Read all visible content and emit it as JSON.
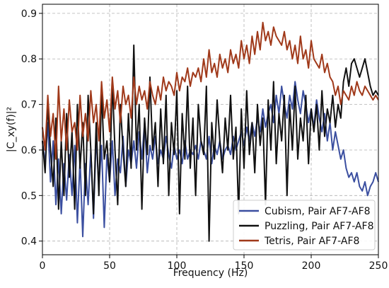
{
  "chart_data": {
    "type": "line",
    "xlabel": "Frequency (Hz)",
    "ylabel": "|C_xy(f)|²",
    "xlim": [
      0,
      250
    ],
    "ylim": [
      0.37,
      0.92
    ],
    "x_ticks": [
      0,
      50,
      100,
      150,
      200,
      250
    ],
    "y_ticks": [
      0.4,
      0.5,
      0.6,
      0.7,
      0.8,
      0.9
    ],
    "grid": true,
    "legend_position": "lower-right",
    "x_step": 2,
    "series": [
      {
        "name": "Cubism, Pair AF7-AF8",
        "color": "#3b4fa0",
        "values": [
          0.62,
          0.57,
          0.66,
          0.53,
          0.62,
          0.48,
          0.58,
          0.46,
          0.57,
          0.49,
          0.59,
          0.5,
          0.61,
          0.44,
          0.58,
          0.41,
          0.57,
          0.48,
          0.6,
          0.45,
          0.63,
          0.52,
          0.61,
          0.43,
          0.59,
          0.53,
          0.62,
          0.5,
          0.58,
          0.55,
          0.63,
          0.52,
          0.6,
          0.57,
          0.62,
          0.56,
          0.64,
          0.58,
          0.66,
          0.55,
          0.61,
          0.58,
          0.63,
          0.57,
          0.6,
          0.58,
          0.63,
          0.59,
          0.56,
          0.61,
          0.58,
          0.6,
          0.57,
          0.62,
          0.58,
          0.6,
          0.59,
          0.61,
          0.58,
          0.62,
          0.6,
          0.58,
          0.63,
          0.57,
          0.61,
          0.59,
          0.62,
          0.58,
          0.6,
          0.61,
          0.59,
          0.63,
          0.6,
          0.62,
          0.64,
          0.61,
          0.65,
          0.62,
          0.66,
          0.63,
          0.67,
          0.64,
          0.69,
          0.65,
          0.68,
          0.7,
          0.66,
          0.72,
          0.68,
          0.74,
          0.7,
          0.67,
          0.72,
          0.69,
          0.75,
          0.71,
          0.68,
          0.73,
          0.7,
          0.66,
          0.69,
          0.65,
          0.71,
          0.67,
          0.64,
          0.68,
          0.62,
          0.66,
          0.6,
          0.64,
          0.61,
          0.58,
          0.6,
          0.56,
          0.54,
          0.55,
          0.53,
          0.55,
          0.52,
          0.51,
          0.53,
          0.5,
          0.52,
          0.53,
          0.55,
          0.53
        ]
      },
      {
        "name": "Puzzling, Pair AF7-AF8",
        "color": "#111111",
        "values": [
          0.62,
          0.55,
          0.7,
          0.6,
          0.52,
          0.67,
          0.47,
          0.62,
          0.5,
          0.68,
          0.54,
          0.64,
          0.47,
          0.7,
          0.56,
          0.66,
          0.5,
          0.72,
          0.6,
          0.46,
          0.66,
          0.5,
          0.73,
          0.58,
          0.62,
          0.53,
          0.75,
          0.6,
          0.48,
          0.7,
          0.6,
          0.52,
          0.68,
          0.56,
          0.83,
          0.6,
          0.7,
          0.47,
          0.67,
          0.59,
          0.76,
          0.6,
          0.66,
          0.52,
          0.69,
          0.57,
          0.72,
          0.5,
          0.66,
          0.59,
          0.73,
          0.46,
          0.68,
          0.58,
          0.74,
          0.56,
          0.67,
          0.5,
          0.7,
          0.62,
          0.59,
          0.74,
          0.4,
          0.66,
          0.58,
          0.71,
          0.62,
          0.55,
          0.67,
          0.6,
          0.72,
          0.58,
          0.65,
          0.46,
          0.69,
          0.56,
          0.73,
          0.59,
          0.66,
          0.55,
          0.7,
          0.61,
          0.67,
          0.48,
          0.71,
          0.6,
          0.75,
          0.57,
          0.68,
          0.62,
          0.72,
          0.5,
          0.7,
          0.6,
          0.74,
          0.58,
          0.67,
          0.62,
          0.72,
          0.57,
          0.69,
          0.64,
          0.7,
          0.6,
          0.73,
          0.63,
          0.69,
          0.66,
          0.72,
          0.65,
          0.7,
          0.67,
          0.75,
          0.78,
          0.74,
          0.79,
          0.8,
          0.78,
          0.76,
          0.78,
          0.8,
          0.77,
          0.74,
          0.72,
          0.73,
          0.72
        ]
      },
      {
        "name": "Tetris, Pair AF7-AF8",
        "color": "#a0391a",
        "values": [
          0.65,
          0.6,
          0.72,
          0.63,
          0.68,
          0.58,
          0.74,
          0.62,
          0.69,
          0.6,
          0.71,
          0.64,
          0.66,
          0.6,
          0.72,
          0.63,
          0.68,
          0.62,
          0.73,
          0.66,
          0.7,
          0.62,
          0.75,
          0.67,
          0.71,
          0.64,
          0.76,
          0.69,
          0.73,
          0.66,
          0.74,
          0.7,
          0.72,
          0.67,
          0.76,
          0.7,
          0.74,
          0.71,
          0.73,
          0.69,
          0.75,
          0.72,
          0.7,
          0.74,
          0.71,
          0.76,
          0.73,
          0.75,
          0.74,
          0.72,
          0.77,
          0.73,
          0.76,
          0.75,
          0.78,
          0.74,
          0.77,
          0.76,
          0.78,
          0.75,
          0.8,
          0.76,
          0.82,
          0.77,
          0.79,
          0.76,
          0.81,
          0.78,
          0.8,
          0.77,
          0.82,
          0.79,
          0.81,
          0.78,
          0.84,
          0.8,
          0.83,
          0.79,
          0.85,
          0.81,
          0.86,
          0.82,
          0.88,
          0.84,
          0.86,
          0.83,
          0.87,
          0.85,
          0.84,
          0.83,
          0.86,
          0.82,
          0.84,
          0.8,
          0.83,
          0.79,
          0.85,
          0.8,
          0.82,
          0.78,
          0.84,
          0.8,
          0.79,
          0.78,
          0.81,
          0.77,
          0.79,
          0.76,
          0.75,
          0.72,
          0.74,
          0.7,
          0.73,
          0.72,
          0.71,
          0.74,
          0.72,
          0.75,
          0.73,
          0.72,
          0.74,
          0.73,
          0.72,
          0.71,
          0.72,
          0.71
        ]
      }
    ]
  }
}
